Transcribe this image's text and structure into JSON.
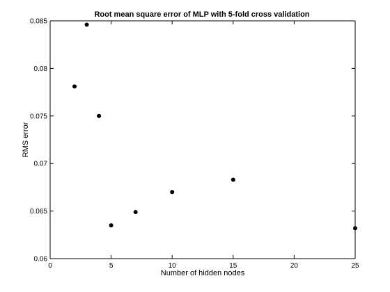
{
  "chart_data": {
    "type": "scatter",
    "title": "Root mean square error of MLP with 5-fold cross validation",
    "xlabel": "Number of hidden nodes",
    "ylabel": "RMS error",
    "xlim": [
      0,
      25
    ],
    "ylim": [
      0.06,
      0.085
    ],
    "xticks": [
      0,
      5,
      10,
      15,
      20,
      25
    ],
    "yticks": [
      0.06,
      0.065,
      0.07,
      0.075,
      0.08,
      0.085
    ],
    "xtick_labels": [
      "0",
      "5",
      "10",
      "15",
      "20",
      "25"
    ],
    "ytick_labels": [
      "0.06",
      "0.065",
      "0.07",
      "0.075",
      "0.08",
      "0.085"
    ],
    "grid": false,
    "legend": "none",
    "marker_color": "#000000",
    "series": [
      {
        "x": [
          2,
          3,
          4,
          5,
          7,
          10,
          15,
          25
        ],
        "y": [
          0.0781,
          0.0846,
          0.075,
          0.0635,
          0.0649,
          0.067,
          0.0683,
          0.0632
        ]
      }
    ]
  }
}
